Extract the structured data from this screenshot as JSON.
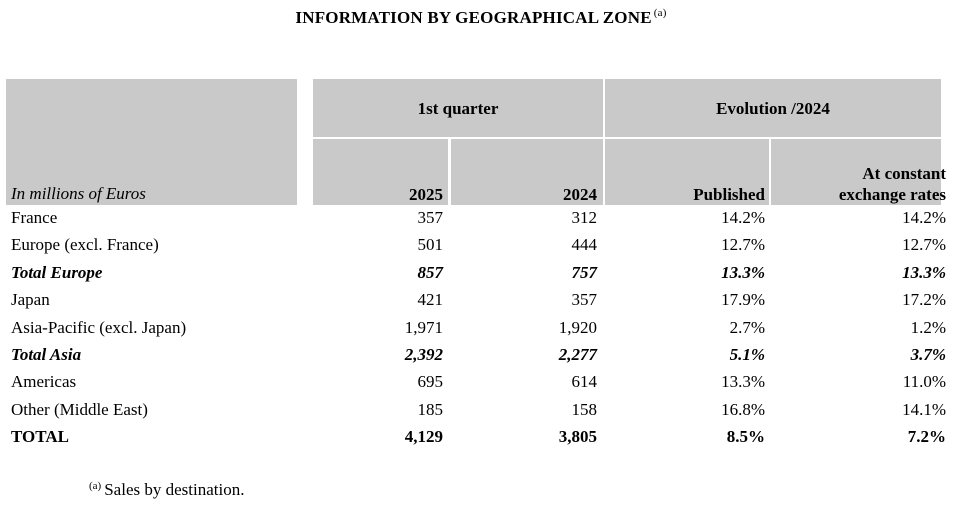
{
  "title": {
    "text": "INFORMATION BY GEOGRAPHICAL ZONE",
    "note_marker": "(a)"
  },
  "table": {
    "unit_label": "In millions of Euros",
    "group_headers": {
      "quarter": "1st quarter",
      "evolution": "Evolution /2024"
    },
    "column_headers": {
      "y2025": "2025",
      "y2024": "2024",
      "published": "Published",
      "constant_line1": "At constant",
      "constant_line2": "exchange rates"
    },
    "rows": [
      {
        "label": "France",
        "y2025": "357",
        "y2024": "312",
        "published": "14.2%",
        "constant": "14.2%",
        "style": "normal"
      },
      {
        "label": "Europe (excl. France)",
        "y2025": "501",
        "y2024": "444",
        "published": "12.7%",
        "constant": "12.7%",
        "style": "normal"
      },
      {
        "label": "Total Europe",
        "y2025": "857",
        "y2024": "757",
        "published": "13.3%",
        "constant": "13.3%",
        "style": "subtotal"
      },
      {
        "label": "Japan",
        "y2025": "421",
        "y2024": "357",
        "published": "17.9%",
        "constant": "17.2%",
        "style": "normal"
      },
      {
        "label": "Asia-Pacific (excl. Japan)",
        "y2025": "1,971",
        "y2024": "1,920",
        "published": "2.7%",
        "constant": "1.2%",
        "style": "normal"
      },
      {
        "label": "Total Asia",
        "y2025": "2,392",
        "y2024": "2,277",
        "published": "5.1%",
        "constant": "3.7%",
        "style": "subtotal"
      },
      {
        "label": "Americas",
        "y2025": "695",
        "y2024": "614",
        "published": "13.3%",
        "constant": "11.0%",
        "style": "normal"
      },
      {
        "label": "Other (Middle East)",
        "y2025": "185",
        "y2024": "158",
        "published": "16.8%",
        "constant": "14.1%",
        "style": "normal"
      },
      {
        "label": "TOTAL",
        "y2025": "4,129",
        "y2024": "3,805",
        "published": "8.5%",
        "constant": "7.2%",
        "style": "total"
      }
    ]
  },
  "footnote": {
    "marker": "(a)",
    "text": "Sales by destination."
  }
}
